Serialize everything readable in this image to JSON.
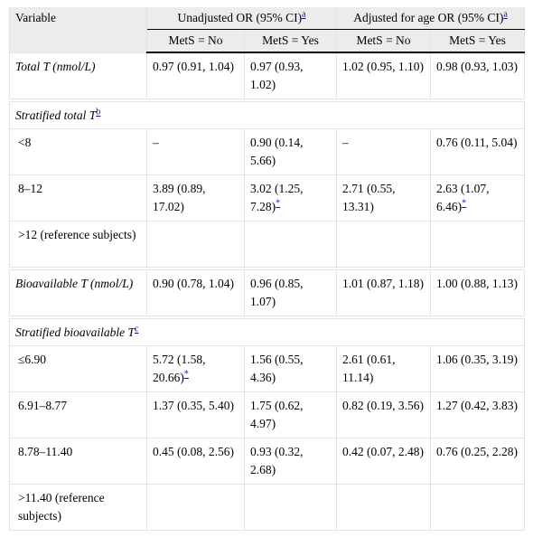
{
  "table": {
    "header": {
      "variable": "Variable",
      "groups": [
        {
          "label": "Unadjusted OR (95% CI)",
          "note": "a"
        },
        {
          "label": "Adjusted for age OR (95% CI)",
          "note": "a"
        }
      ],
      "subheaders": [
        "MetS = No",
        "MetS = Yes",
        "MetS = No",
        "MetS = Yes"
      ]
    },
    "rows": [
      {
        "label": "Total T (nmol/L)",
        "italic": true,
        "cells": [
          {
            "text": "0.97 (0.91, 1.04)"
          },
          {
            "text": "0.97 (0.93, 1.02)"
          },
          {
            "text": "1.02 (0.95, 1.10)"
          },
          {
            "text": "0.98 (0.93, 1.03)"
          }
        ]
      },
      {
        "label": "Stratified total T",
        "italic": true,
        "note": "b",
        "cells": []
      },
      {
        "label": "<8",
        "cells": [
          {
            "text": "–"
          },
          {
            "text": "0.90 (0.14, 5.66)"
          },
          {
            "text": "–"
          },
          {
            "text": "0.76 (0.11, 5.04)"
          }
        ]
      },
      {
        "label": "8–12",
        "cells": [
          {
            "text": "3.89 (0.89, 17.02)"
          },
          {
            "text": "3.02 (1.25, 7.28)",
            "note": "*"
          },
          {
            "text": "2.71 (0.55, 13.31)"
          },
          {
            "text": "2.63 (1.07, 6.46)",
            "note": "*"
          }
        ]
      },
      {
        "label": ">12 (reference subjects)",
        "cells": []
      },
      {
        "label": "Bioavailable T (nmol/L)",
        "italic": true,
        "cells": [
          {
            "text": "0.90 (0.78, 1.04)"
          },
          {
            "text": "0.96 (0.85, 1.07)"
          },
          {
            "text": "1.01 (0.87, 1.18)"
          },
          {
            "text": "1.00 (0.88, 1.13)"
          }
        ]
      },
      {
        "label": "Stratified bioavailable T",
        "italic": true,
        "note": "c",
        "cells": []
      },
      {
        "label": "≤6.90",
        "cells": [
          {
            "text": "5.72 (1.58, 20.66)",
            "note": "*"
          },
          {
            "text": "1.56 (0.55, 4.36)"
          },
          {
            "text": "2.61 (0.61, 11.14)"
          },
          {
            "text": "1.06 (0.35, 3.19)"
          }
        ]
      },
      {
        "label": "6.91–8.77",
        "cells": [
          {
            "text": "1.37 (0.35, 5.40)"
          },
          {
            "text": "1.75 (0.62, 4.97)"
          },
          {
            "text": "0.82 (0.19, 3.56)"
          },
          {
            "text": "1.27 (0.42, 3.83)"
          }
        ]
      },
      {
        "label": "8.78–11.40",
        "cells": [
          {
            "text": "0.45 (0.08, 2.56)"
          },
          {
            "text": "0.93 (0.32, 2.68)"
          },
          {
            "text": "0.42 (0.07, 2.48)"
          },
          {
            "text": "0.76 (0.25, 2.28)"
          }
        ]
      },
      {
        "label": ">11.40 (reference subjects)",
        "cells": []
      }
    ]
  }
}
